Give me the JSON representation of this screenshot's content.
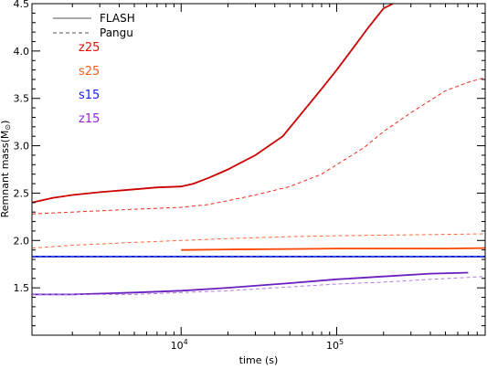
{
  "chart_data": {
    "type": "line",
    "xlabel": "time (s)",
    "ylabel": "Remnant mass(M",
    "ylabel_sub": "⊙",
    "ylabel_close": ")",
    "xscale": "log",
    "xlim": [
      1100,
      900000
    ],
    "ylim": [
      1.0,
      4.5
    ],
    "x_ticks": [
      {
        "value": 10000,
        "base": "10",
        "exp": "4"
      },
      {
        "value": 100000,
        "base": "10",
        "exp": "5"
      }
    ],
    "y_ticks": [
      "1.5",
      "2.0",
      "2.5",
      "3.0",
      "3.5",
      "4.0",
      "4.5"
    ],
    "legend": {
      "placement": "top-left",
      "entries": [
        {
          "label": "FLASH",
          "style": "solid"
        },
        {
          "label": "Pangu",
          "style": "dashed"
        }
      ]
    },
    "model_labels": [
      {
        "text": "z25",
        "color": "#dd1100"
      },
      {
        "text": "s25",
        "color": "#ff5a1a"
      },
      {
        "text": "s15",
        "color": "#1a1aff"
      },
      {
        "text": "z15",
        "color": "#9922dd"
      }
    ],
    "series": [
      {
        "model": "z25",
        "code": "FLASH",
        "color": "#cc0000",
        "style": "solid",
        "points": [
          [
            1100,
            2.4
          ],
          [
            1500,
            2.45
          ],
          [
            2000,
            2.48
          ],
          [
            3000,
            2.51
          ],
          [
            5000,
            2.54
          ],
          [
            7000,
            2.56
          ],
          [
            10000,
            2.57
          ],
          [
            12000,
            2.6
          ],
          [
            15000,
            2.66
          ],
          [
            20000,
            2.75
          ],
          [
            30000,
            2.9
          ],
          [
            45000,
            3.1
          ],
          [
            60000,
            3.35
          ],
          [
            80000,
            3.6
          ],
          [
            100000,
            3.8
          ],
          [
            130000,
            4.05
          ],
          [
            160000,
            4.25
          ],
          [
            200000,
            4.45
          ],
          [
            230000,
            4.55
          ]
        ]
      },
      {
        "model": "z25",
        "code": "Pangu",
        "color": "#ee2a1a",
        "style": "dashed",
        "points": [
          [
            1100,
            2.28
          ],
          [
            2000,
            2.3
          ],
          [
            5000,
            2.33
          ],
          [
            10000,
            2.35
          ],
          [
            15000,
            2.38
          ],
          [
            20000,
            2.42
          ],
          [
            30000,
            2.48
          ],
          [
            50000,
            2.57
          ],
          [
            80000,
            2.7
          ],
          [
            100000,
            2.8
          ],
          [
            150000,
            2.98
          ],
          [
            200000,
            3.15
          ],
          [
            300000,
            3.35
          ],
          [
            500000,
            3.58
          ],
          [
            700000,
            3.67
          ],
          [
            900000,
            3.72
          ]
        ]
      },
      {
        "model": "s25",
        "code": "FLASH",
        "color": "#ff4500",
        "style": "solid",
        "points": [
          [
            10000,
            1.9
          ],
          [
            20000,
            1.905
          ],
          [
            50000,
            1.91
          ],
          [
            100000,
            1.915
          ],
          [
            200000,
            1.915
          ],
          [
            500000,
            1.915
          ],
          [
            900000,
            1.92
          ]
        ]
      },
      {
        "model": "s25",
        "code": "Pangu",
        "color": "#ff6a3a",
        "style": "dashed",
        "points": [
          [
            1100,
            1.92
          ],
          [
            2000,
            1.95
          ],
          [
            5000,
            1.98
          ],
          [
            10000,
            2.0
          ],
          [
            20000,
            2.02
          ],
          [
            50000,
            2.04
          ],
          [
            100000,
            2.05
          ],
          [
            300000,
            2.06
          ],
          [
            900000,
            2.07
          ]
        ]
      },
      {
        "model": "s15",
        "code": "FLASH",
        "color": "#0000cc",
        "style": "solid",
        "points": [
          [
            1100,
            1.83
          ],
          [
            10000,
            1.83
          ],
          [
            100000,
            1.83
          ],
          [
            900000,
            1.83
          ]
        ]
      },
      {
        "model": "s15",
        "code": "Pangu",
        "color": "#3366ff",
        "style": "dashed",
        "points": [
          [
            1100,
            1.835
          ],
          [
            10000,
            1.835
          ],
          [
            100000,
            1.835
          ],
          [
            900000,
            1.835
          ]
        ]
      },
      {
        "model": "z15",
        "code": "FLASH",
        "color": "#6a1fbf",
        "style": "solid",
        "points": [
          [
            1100,
            1.43
          ],
          [
            2000,
            1.43
          ],
          [
            5000,
            1.45
          ],
          [
            10000,
            1.47
          ],
          [
            20000,
            1.5
          ],
          [
            50000,
            1.55
          ],
          [
            100000,
            1.59
          ],
          [
            200000,
            1.62
          ],
          [
            400000,
            1.65
          ],
          [
            700000,
            1.66
          ]
        ]
      },
      {
        "model": "z15",
        "code": "Pangu",
        "color": "#b47ae0",
        "style": "dashed",
        "points": [
          [
            1100,
            1.43
          ],
          [
            5000,
            1.43
          ],
          [
            10000,
            1.45
          ],
          [
            20000,
            1.47
          ],
          [
            50000,
            1.51
          ],
          [
            100000,
            1.54
          ],
          [
            200000,
            1.56
          ],
          [
            400000,
            1.59
          ],
          [
            700000,
            1.61
          ],
          [
            900000,
            1.62
          ]
        ]
      }
    ]
  }
}
